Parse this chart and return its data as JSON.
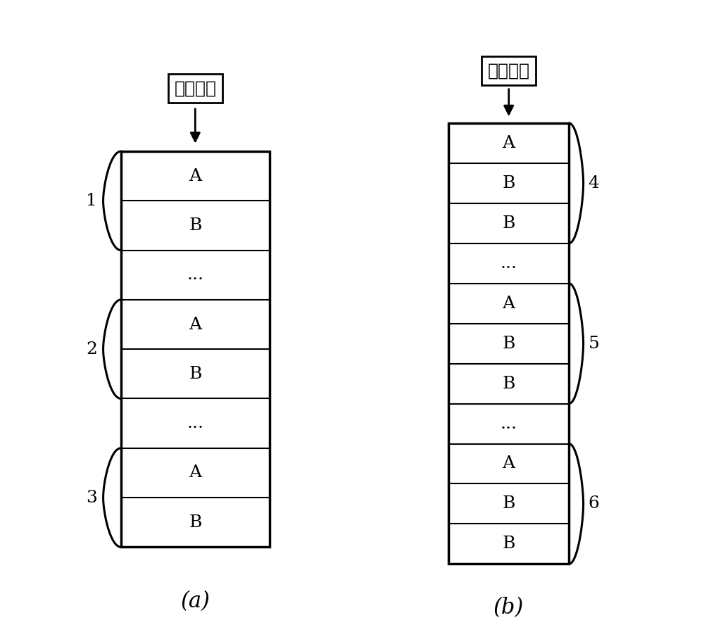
{
  "injection_label": "电子注入",
  "caption_a": "(a)",
  "caption_b": "(b)",
  "diagram_a": {
    "rows": [
      "A",
      "B",
      "...",
      "A",
      "B",
      "...",
      "A",
      "B"
    ],
    "braces": [
      {
        "label": "1",
        "rows": [
          0,
          1
        ],
        "side": "left"
      },
      {
        "label": "2",
        "rows": [
          3,
          4
        ],
        "side": "left"
      },
      {
        "label": "3",
        "rows": [
          6,
          7
        ],
        "side": "left"
      }
    ]
  },
  "diagram_b": {
    "rows": [
      "A",
      "B",
      "B",
      "...",
      "A",
      "B",
      "B",
      "...",
      "A",
      "B",
      "B"
    ],
    "braces": [
      {
        "label": "4",
        "rows": [
          0,
          2
        ],
        "side": "right"
      },
      {
        "label": "5",
        "rows": [
          4,
          6
        ],
        "side": "right"
      },
      {
        "label": "6",
        "rows": [
          8,
          10
        ],
        "side": "right"
      }
    ]
  },
  "bg_color": "#ffffff",
  "box_color": "#000000",
  "text_color": "#000000",
  "font_size_row": 18,
  "font_size_caption": 22,
  "font_size_brace_label": 18,
  "font_size_injection": 18
}
